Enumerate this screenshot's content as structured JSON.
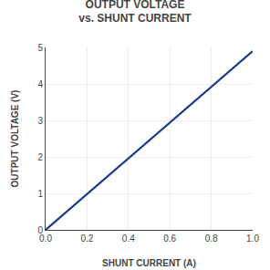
{
  "chart_data": {
    "type": "line",
    "title": "OUTPUT VOLTAGE\nvs. SHUNT CURRENT",
    "xlabel": "SHUNT CURRENT (A)",
    "ylabel": "OUTPUT VOLTAGE (V)",
    "x": [
      0.0,
      1.0
    ],
    "values": [
      0.0,
      4.9
    ],
    "color": "#1a3a8c",
    "xlim": [
      0.0,
      1.0
    ],
    "ylim": [
      0.0,
      5.0
    ],
    "xticks": [
      {
        "value": 0.0,
        "label": "0.0"
      },
      0.2,
      0.4,
      0.6,
      0.8,
      {
        "value": 1.0,
        "label": "1.0"
      }
    ],
    "yticks": [
      0,
      1,
      2,
      3,
      4,
      5
    ],
    "grid": true
  }
}
